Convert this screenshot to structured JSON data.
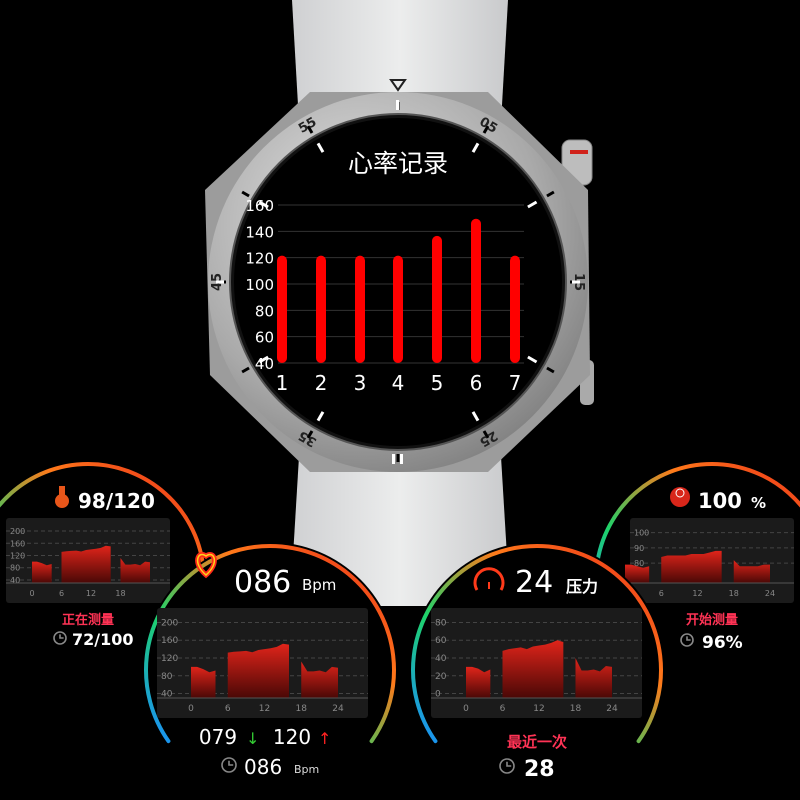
{
  "main_watch": {
    "title": "心率记录",
    "bezel_numbers": [
      "55",
      "05",
      "15",
      "25",
      "35",
      "45"
    ]
  },
  "chart_data": [
    {
      "type": "bar",
      "title": "心率记录",
      "categories": [
        "1",
        "2",
        "3",
        "4",
        "5",
        "6",
        "7"
      ],
      "values": [
        120,
        120,
        120,
        120,
        135,
        148,
        120
      ],
      "baseline": 40,
      "ylim": [
        40,
        160
      ],
      "yticks": [
        "40",
        "60",
        "80",
        "100",
        "120",
        "140",
        "160"
      ],
      "grid": true,
      "bar_color": "#ff0000"
    },
    {
      "type": "area",
      "panel": "sleep-heart",
      "x": [
        0,
        1,
        2,
        3,
        4,
        5,
        6,
        7,
        8,
        9,
        10,
        11,
        12,
        13,
        14,
        15,
        16,
        17,
        18,
        19,
        20,
        21,
        22,
        23,
        24
      ],
      "values": [
        100,
        100,
        95,
        88,
        92,
        null,
        132,
        134,
        135,
        136,
        133,
        138,
        140,
        142,
        145,
        152,
        150,
        null,
        112,
        90,
        90,
        92,
        88,
        100,
        98
      ],
      "ylim": [
        30,
        210
      ],
      "yticks": [
        "200",
        "160",
        "120",
        "80",
        "40"
      ],
      "xticks": [
        "0",
        "6",
        "12",
        "18"
      ]
    },
    {
      "type": "area",
      "panel": "heart-rate",
      "x": [
        0,
        1,
        2,
        3,
        4,
        5,
        6,
        7,
        8,
        9,
        10,
        11,
        12,
        13,
        14,
        15,
        16,
        17,
        18,
        19,
        20,
        21,
        22,
        23,
        24
      ],
      "values": [
        100,
        100,
        95,
        88,
        92,
        null,
        132,
        134,
        135,
        136,
        133,
        138,
        140,
        142,
        145,
        152,
        150,
        null,
        112,
        90,
        90,
        92,
        88,
        100,
        98
      ],
      "ylim": [
        30,
        210
      ],
      "yticks": [
        "200",
        "160",
        "120",
        "80",
        "40"
      ],
      "xticks": [
        "0",
        "6",
        "12",
        "18",
        "24"
      ]
    },
    {
      "type": "area",
      "panel": "stress",
      "x": [
        0,
        1,
        2,
        3,
        4,
        5,
        6,
        7,
        8,
        9,
        10,
        11,
        12,
        13,
        14,
        15,
        16,
        17,
        18,
        19,
        20,
        21,
        22,
        23,
        24
      ],
      "values": [
        30,
        30,
        28,
        24,
        27,
        null,
        48,
        50,
        51,
        52,
        50,
        53,
        54,
        55,
        57,
        60,
        58,
        null,
        40,
        26,
        26,
        27,
        25,
        31,
        30
      ],
      "ylim": [
        -5,
        85
      ],
      "yticks": [
        "80",
        "60",
        "40",
        "20",
        "0"
      ],
      "xticks": [
        "0",
        "6",
        "12",
        "18",
        "24"
      ]
    },
    {
      "type": "area",
      "panel": "spo2",
      "x": [
        0,
        1,
        2,
        3,
        4,
        5,
        6,
        7,
        8,
        9,
        10,
        11,
        12,
        13,
        14,
        15,
        16,
        17,
        18,
        19,
        20,
        21,
        22,
        23,
        24
      ],
      "values": [
        79,
        79,
        78,
        77,
        78,
        null,
        84,
        85,
        85,
        85,
        85,
        86,
        86,
        86,
        87,
        88,
        88,
        null,
        82,
        78,
        78,
        78,
        78,
        79,
        79
      ],
      "ylim": [
        67,
        103
      ],
      "yticks": [
        "100",
        "90",
        "80"
      ],
      "xticks": [
        "6",
        "12",
        "18",
        "24"
      ]
    }
  ],
  "panels": {
    "sleep_heart": {
      "icon": "thermometer-heart-icon",
      "value": "98/120",
      "status": "正在测量",
      "last": "72/100"
    },
    "heart_rate": {
      "icon": "heart-icon",
      "value": "086",
      "unit": "Bpm",
      "min": "079",
      "max": "120",
      "last": "086",
      "last_unit": "Bpm"
    },
    "stress": {
      "icon": "gauge-icon",
      "value": "24",
      "unit": "压力",
      "status": "最近一次",
      "last": "28"
    },
    "spo2": {
      "icon": "blood-oxygen-icon",
      "value": "100",
      "unit": "%",
      "status": "开始测量",
      "last": "96%"
    }
  },
  "colors": {
    "accent_red": "#ff1a1a",
    "status_pink": "#ff3355",
    "arc_green": "#1ed36a",
    "arc_blue": "#1a8cff",
    "arc_orange": "#ff7a1a",
    "down_green": "#33cc33",
    "up_red": "#ff2222"
  }
}
